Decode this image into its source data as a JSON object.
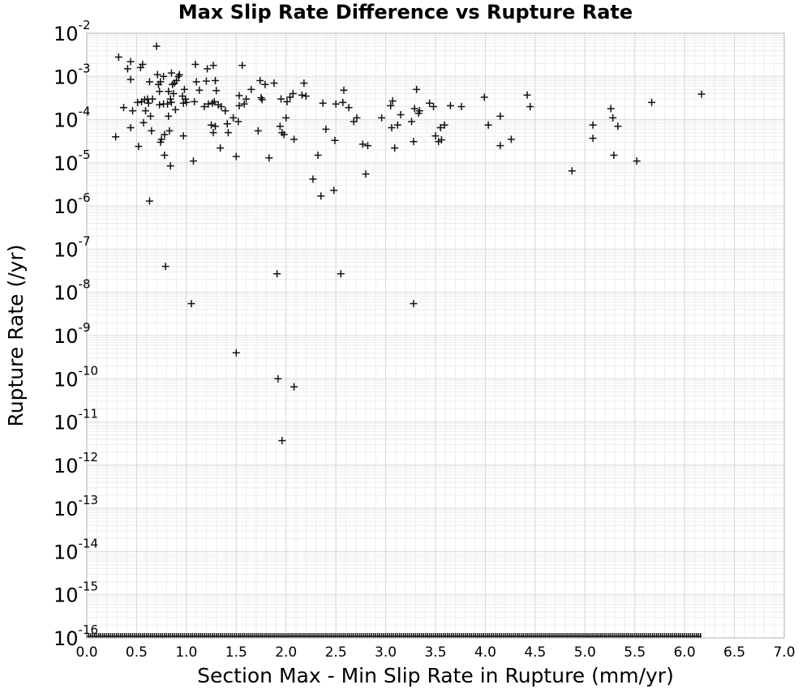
{
  "chart_data": {
    "type": "scatter",
    "title": "Max Slip Rate Difference vs Rupture Rate",
    "xlabel": "Section Max - Min Slip Rate in Rupture (mm/yr)",
    "ylabel": "Rupture Rate (/yr)",
    "xlim": [
      0.0,
      7.0
    ],
    "ylim": [
      1e-16,
      0.01
    ],
    "yscale": "log",
    "grid": true,
    "marker": "plus",
    "x_ticks": [
      "0.0",
      "0.5",
      "1.0",
      "1.5",
      "2.0",
      "2.5",
      "3.0",
      "3.5",
      "4.0",
      "4.5",
      "5.0",
      "5.5",
      "6.0",
      "6.5",
      "7.0"
    ],
    "y_ticks": [
      {
        "base": "10",
        "exp": "-2"
      },
      {
        "base": "10",
        "exp": "-3"
      },
      {
        "base": "10",
        "exp": "-4"
      },
      {
        "base": "10",
        "exp": "-5"
      },
      {
        "base": "10",
        "exp": "-6"
      },
      {
        "base": "10",
        "exp": "-7"
      },
      {
        "base": "10",
        "exp": "-8"
      },
      {
        "base": "10",
        "exp": "-9"
      },
      {
        "base": "10",
        "exp": "-10"
      },
      {
        "base": "10",
        "exp": "-11"
      },
      {
        "base": "10",
        "exp": "-12"
      },
      {
        "base": "10",
        "exp": "-13"
      },
      {
        "base": "10",
        "exp": "-14"
      },
      {
        "base": "10",
        "exp": "-15"
      },
      {
        "base": "10",
        "exp": "-16"
      }
    ],
    "points": [
      [
        0.29,
        4e-05
      ],
      [
        0.32,
        0.0028
      ],
      [
        0.37,
        0.00019
      ],
      [
        0.41,
        0.0015
      ],
      [
        0.44,
        0.0022
      ],
      [
        0.44,
        0.00085
      ],
      [
        0.44,
        6.5e-05
      ],
      [
        0.46,
        0.00016
      ],
      [
        0.51,
        0.00025
      ],
      [
        0.52,
        2.4e-05
      ],
      [
        0.54,
        0.0016
      ],
      [
        0.55,
        0.00026
      ],
      [
        0.56,
        0.0019
      ],
      [
        0.57,
        8.5e-05
      ],
      [
        0.58,
        0.00029
      ],
      [
        0.59,
        0.00016
      ],
      [
        0.61,
        0.0003
      ],
      [
        0.62,
        0.00024
      ],
      [
        0.63,
        0.00075
      ],
      [
        0.63,
        1.3e-06
      ],
      [
        0.64,
        0.00012
      ],
      [
        0.65,
        5.5e-05
      ],
      [
        0.66,
        0.0003
      ],
      [
        0.7,
        0.005
      ],
      [
        0.71,
        0.0011
      ],
      [
        0.72,
        0.00065
      ],
      [
        0.73,
        0.00045
      ],
      [
        0.73,
        0.00022
      ],
      [
        0.74,
        3e-05
      ],
      [
        0.74,
        0.00075
      ],
      [
        0.75,
        3.5e-05
      ],
      [
        0.77,
        0.00023
      ],
      [
        0.77,
        0.001
      ],
      [
        0.78,
        4.5e-05
      ],
      [
        0.78,
        1.5e-05
      ],
      [
        0.79,
        4e-08
      ],
      [
        0.81,
        0.00023
      ],
      [
        0.82,
        0.00045
      ],
      [
        0.82,
        0.00012
      ],
      [
        0.83,
        5.5e-05
      ],
      [
        0.84,
        8.5e-06
      ],
      [
        0.84,
        0.0003
      ],
      [
        0.85,
        0.0012
      ],
      [
        0.85,
        0.00025
      ],
      [
        0.86,
        0.00065
      ],
      [
        0.87,
        0.0004
      ],
      [
        0.88,
        0.0007
      ],
      [
        0.89,
        0.00017
      ],
      [
        0.9,
        0.0008
      ],
      [
        0.92,
        0.001
      ],
      [
        0.93,
        0.0011
      ],
      [
        0.96,
        0.00035
      ],
      [
        0.97,
        4.2e-05
      ],
      [
        0.97,
        0.00024
      ],
      [
        0.98,
        0.0005
      ],
      [
        0.99,
        0.0003
      ],
      [
        1.0,
        0.00025
      ],
      [
        1.05,
        5.5e-09
      ],
      [
        1.07,
        1.1e-05
      ],
      [
        1.08,
        0.00026
      ],
      [
        1.09,
        0.0019
      ],
      [
        1.1,
        0.00075
      ],
      [
        1.13,
        0.00048
      ],
      [
        1.18,
        0.0002
      ],
      [
        1.2,
        0.00078
      ],
      [
        1.21,
        0.0015
      ],
      [
        1.22,
        0.00023
      ],
      [
        1.25,
        7.5e-05
      ],
      [
        1.26,
        0.00024
      ],
      [
        1.27,
        0.0018
      ],
      [
        1.27,
        5e-05
      ],
      [
        1.28,
        0.00026
      ],
      [
        1.29,
        0.0008
      ],
      [
        1.29,
        7e-05
      ],
      [
        1.3,
        0.00047
      ],
      [
        1.32,
        0.00022
      ],
      [
        1.34,
        2.2e-05
      ],
      [
        1.35,
        0.0002
      ],
      [
        1.39,
        0.00016
      ],
      [
        1.41,
        8e-05
      ],
      [
        1.42,
        5e-05
      ],
      [
        1.47,
        0.00011
      ],
      [
        1.5,
        1.4e-05
      ],
      [
        1.5,
        4e-10
      ],
      [
        1.52,
        9e-05
      ],
      [
        1.53,
        0.00036
      ],
      [
        1.53,
        0.00021
      ],
      [
        1.56,
        0.0018
      ],
      [
        1.58,
        0.00023
      ],
      [
        1.6,
        0.0003
      ],
      [
        1.65,
        0.0005
      ],
      [
        1.72,
        5.5e-05
      ],
      [
        1.74,
        0.0008
      ],
      [
        1.75,
        0.00032
      ],
      [
        1.76,
        0.00029
      ],
      [
        1.79,
        0.00065
      ],
      [
        1.83,
        1.3e-05
      ],
      [
        1.88,
        0.0007
      ],
      [
        1.91,
        2.7e-08
      ],
      [
        1.92,
        1e-10
      ],
      [
        1.94,
        7e-05
      ],
      [
        1.95,
        0.0003
      ],
      [
        1.96,
        3.7e-12
      ],
      [
        1.96,
        5e-05
      ],
      [
        1.98,
        4.5e-05
      ],
      [
        2.0,
        0.00011
      ],
      [
        2.01,
        0.00026
      ],
      [
        2.04,
        0.00033
      ],
      [
        2.07,
        0.0004
      ],
      [
        2.08,
        6.5e-11
      ],
      [
        2.08,
        3.5e-05
      ],
      [
        2.16,
        0.00037
      ],
      [
        2.18,
        0.0007
      ],
      [
        2.2,
        0.00035
      ],
      [
        2.27,
        4.2e-06
      ],
      [
        2.32,
        1.5e-05
      ],
      [
        2.35,
        1.7e-06
      ],
      [
        2.37,
        0.00024
      ],
      [
        2.4,
        6e-05
      ],
      [
        2.48,
        2.3e-06
      ],
      [
        2.49,
        3.3e-05
      ],
      [
        2.5,
        0.00023
      ],
      [
        2.55,
        2.7e-08
      ],
      [
        2.57,
        0.00025
      ],
      [
        2.58,
        0.00048
      ],
      [
        2.63,
        0.00019
      ],
      [
        2.68,
        9e-05
      ],
      [
        2.71,
        0.00011
      ],
      [
        2.77,
        2.7e-05
      ],
      [
        2.8,
        5.5e-06
      ],
      [
        2.82,
        2.5e-05
      ],
      [
        2.96,
        0.00011
      ],
      [
        3.05,
        0.00021
      ],
      [
        3.06,
        6.5e-05
      ],
      [
        3.07,
        0.00027
      ],
      [
        3.09,
        2.2e-05
      ],
      [
        3.12,
        7.5e-05
      ],
      [
        3.15,
        0.00013
      ],
      [
        3.26,
        9e-05
      ],
      [
        3.28,
        3.1e-05
      ],
      [
        3.28,
        5.5e-09
      ],
      [
        3.29,
        0.00018
      ],
      [
        3.31,
        0.0005
      ],
      [
        3.33,
        0.00014
      ],
      [
        3.34,
        0.00016
      ],
      [
        3.44,
        0.00024
      ],
      [
        3.48,
        0.0002
      ],
      [
        3.5,
        4.2e-05
      ],
      [
        3.53,
        3.1e-05
      ],
      [
        3.55,
        6.5e-05
      ],
      [
        3.56,
        3.4e-05
      ],
      [
        3.59,
        7.5e-05
      ],
      [
        3.65,
        0.00021
      ],
      [
        3.76,
        0.0002
      ],
      [
        3.99,
        0.00033
      ],
      [
        4.03,
        7.5e-05
      ],
      [
        4.15,
        0.00012
      ],
      [
        4.15,
        2.5e-05
      ],
      [
        4.26,
        3.5e-05
      ],
      [
        4.42,
        0.00037
      ],
      [
        4.45,
        0.0002
      ],
      [
        4.87,
        6.5e-06
      ],
      [
        5.08,
        7.5e-05
      ],
      [
        5.08,
        3.7e-05
      ],
      [
        5.26,
        0.00018
      ],
      [
        5.28,
        0.00011
      ],
      [
        5.29,
        1.5e-05
      ],
      [
        5.33,
        7e-05
      ],
      [
        5.52,
        1.1e-05
      ],
      [
        5.67,
        0.00025
      ],
      [
        6.17,
        0.00039
      ]
    ]
  }
}
